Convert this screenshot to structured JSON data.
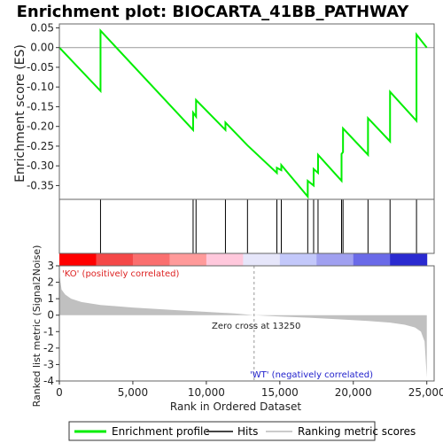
{
  "chart_data": {
    "type": "line",
    "title": "Enrichment plot: BIOCARTA_41BB_PATHWAY",
    "ylabel_es": "Enrichment score (ES)",
    "ylabel_metric": "Ranked list metric (Signal2Noise)",
    "xlabel": "Rank in Ordered Dataset",
    "x_range": [
      0,
      25500
    ],
    "es_ylim": [
      -0.385,
      0.06
    ],
    "metric_ylim": [
      -4,
      3
    ],
    "x_ticks": [
      0,
      5000,
      10000,
      15000,
      20000,
      25000
    ],
    "x_tick_labels": [
      "0",
      "5,000",
      "10,000",
      "15,000",
      "20,000",
      "25,000"
    ],
    "es_ticks": [
      0.05,
      0.0,
      -0.05,
      -0.1,
      -0.15,
      -0.2,
      -0.25,
      -0.3,
      -0.35
    ],
    "es_tick_labels": [
      "0.05",
      "0.00",
      "-0.05",
      "-0.10",
      "-0.15",
      "-0.20",
      "-0.25",
      "-0.30",
      "-0.35"
    ],
    "metric_ticks": [
      3,
      2,
      1,
      0,
      -1,
      -2,
      -3,
      -4
    ],
    "metric_tick_labels": [
      "3",
      "2",
      "1",
      "0",
      "-1",
      "-2",
      "-3",
      "-4"
    ],
    "es_profile": {
      "x": [
        0,
        2800,
        2800,
        9100,
        9100,
        9300,
        9300,
        11300,
        11300,
        12800,
        14800,
        14800,
        15100,
        15100,
        16900,
        16900,
        17300,
        17300,
        17600,
        17600,
        19200,
        19200,
        19300,
        19300,
        21000,
        21000,
        22500,
        22500,
        24300,
        24300,
        25000
      ],
      "y": [
        0.0,
        -0.11,
        0.043,
        -0.209,
        -0.165,
        -0.175,
        -0.133,
        -0.209,
        -0.19,
        -0.248,
        -0.318,
        -0.305,
        -0.311,
        -0.298,
        -0.378,
        -0.338,
        -0.35,
        -0.308,
        -0.318,
        -0.272,
        -0.338,
        -0.27,
        -0.265,
        -0.205,
        -0.272,
        -0.179,
        -0.238,
        -0.112,
        -0.186,
        0.033,
        0.0
      ]
    },
    "hits_x": [
      2800,
      9100,
      9300,
      11300,
      12800,
      14800,
      15100,
      16900,
      17300,
      17600,
      19200,
      19300,
      21000,
      22500,
      24300
    ],
    "metric_curve": {
      "x": [
        0,
        150,
        400,
        800,
        1500,
        2800,
        5000,
        8000,
        10000,
        12000,
        13250,
        15000,
        17000,
        19000,
        21000,
        22500,
        23500,
        24200,
        24600,
        24850,
        25000
      ],
      "y": [
        2.5,
        1.55,
        1.25,
        1.0,
        0.8,
        0.62,
        0.46,
        0.3,
        0.2,
        0.1,
        0.0,
        -0.08,
        -0.16,
        -0.25,
        -0.35,
        -0.45,
        -0.58,
        -0.75,
        -1.0,
        -1.6,
        -3.8
      ]
    },
    "heat_colors": [
      "#ff0000",
      "#f44848",
      "#fa6f6f",
      "#ff9a9a",
      "#ffc8dc",
      "#e6e6fa",
      "#c3c8fa",
      "#a0a0f0",
      "#6a6ae8",
      "#2a2ad0"
    ],
    "zero_cross_label": "Zero cross at 13250",
    "zero_cross_x": 13250,
    "ko_label": "'KO' (positively correlated)",
    "wt_label": "'WT' (negatively correlated)",
    "legend": [
      {
        "label": "Enrichment profile",
        "color": "#00ee00"
      },
      {
        "label": "Hits",
        "color": "#444444"
      },
      {
        "label": "Ranking metric scores",
        "color": "#cccccc"
      }
    ],
    "colors": {
      "profile": "#00ee00",
      "hits": "#000000",
      "metric_fill": "#c0c0c0",
      "ko": "#dd2222",
      "wt": "#2222cc",
      "frame": "#666666"
    }
  }
}
